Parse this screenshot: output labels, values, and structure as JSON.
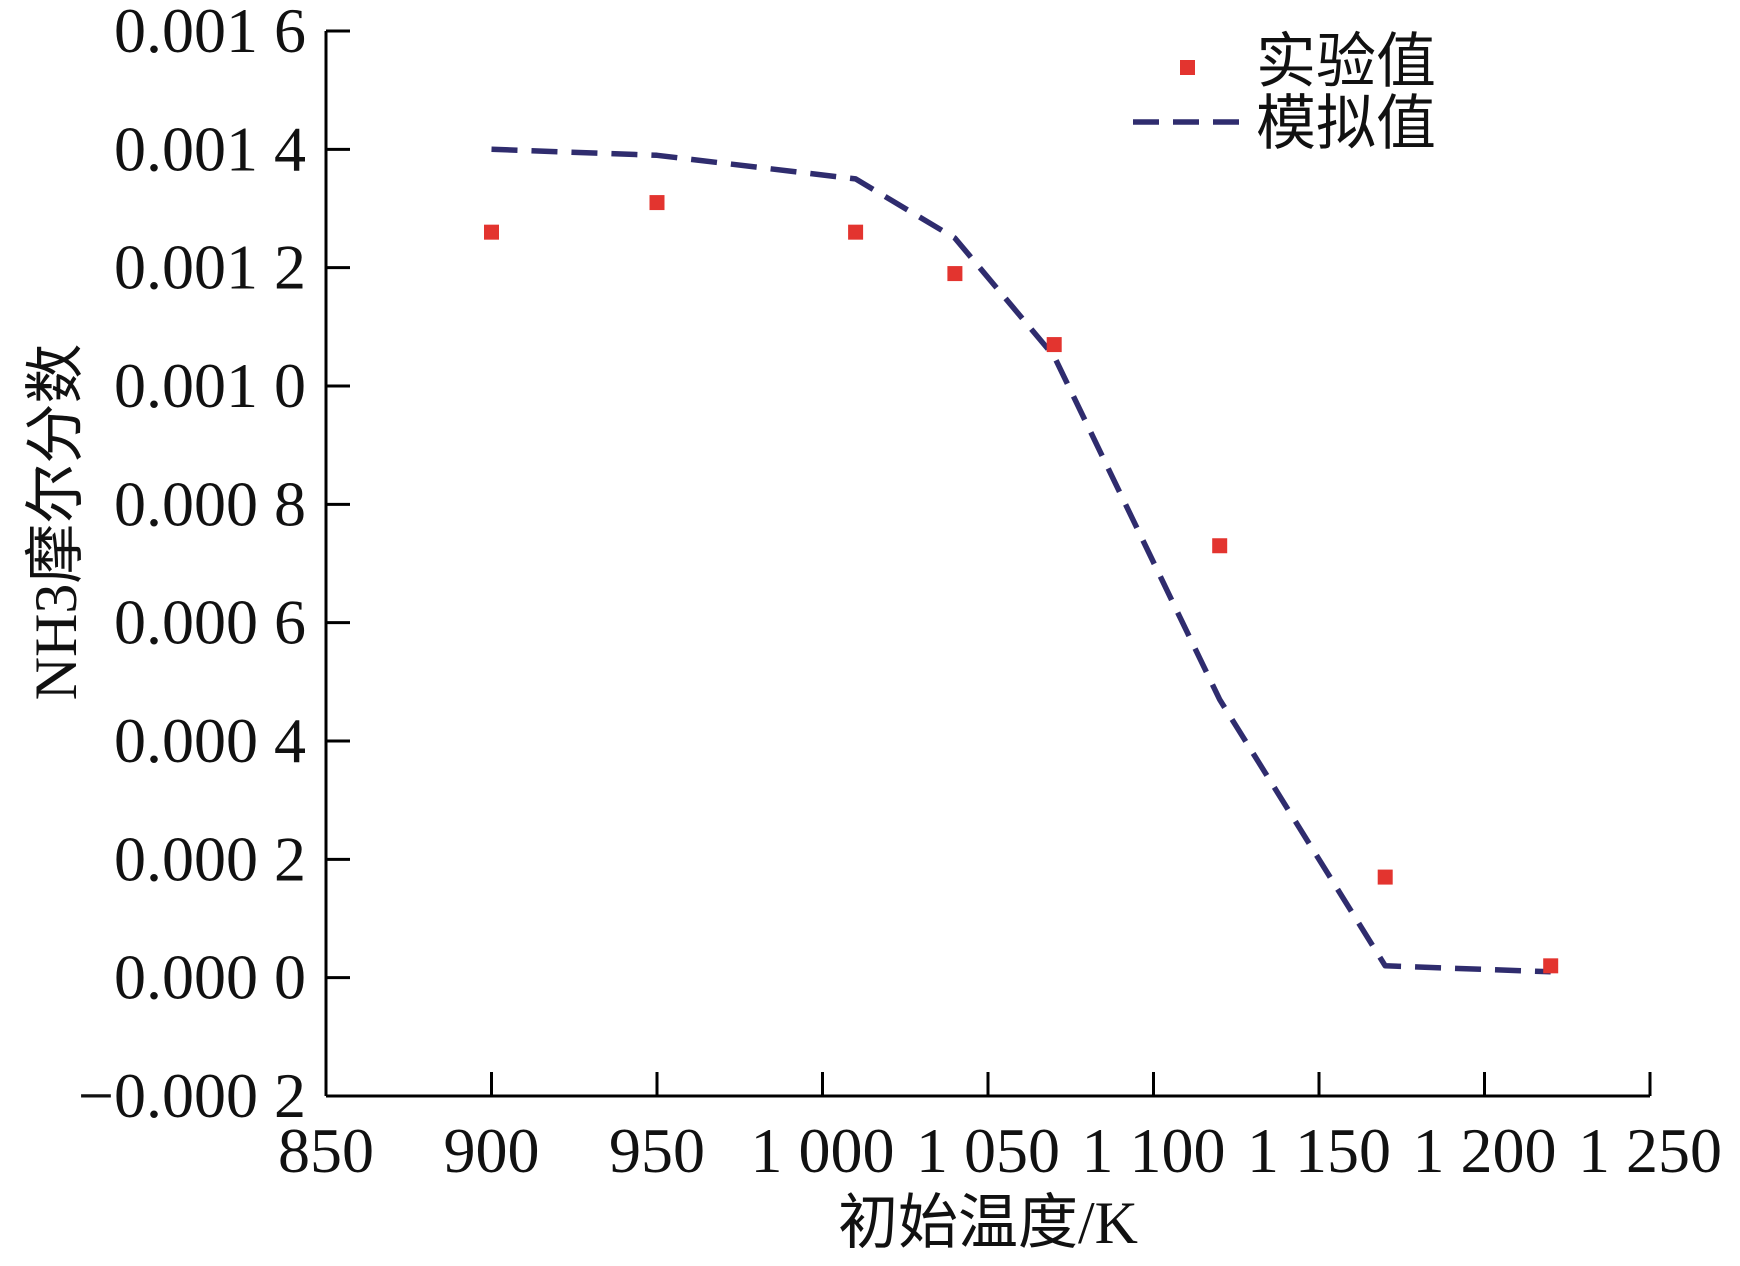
{
  "chart_data": {
    "type": "scatter",
    "xlabel": "初始温度/K",
    "ylabel": "NH3摩尔分数",
    "xlim": [
      850,
      1250
    ],
    "ylim": [
      -0.0002,
      0.0016
    ],
    "x_ticks": [
      850,
      900,
      950,
      1000,
      1050,
      1100,
      1150,
      1200,
      1250
    ],
    "x_tick_labels": [
      "850",
      "900",
      "950",
      "1 000",
      "1 050",
      "1 100",
      "1 150",
      "1 200",
      "1 250"
    ],
    "y_ticks": [
      -0.0002,
      0,
      0.0002,
      0.0004,
      0.0006,
      0.0008,
      0.001,
      0.0012,
      0.0014,
      0.0016
    ],
    "y_tick_labels": [
      "−0.000 2",
      "0.000 0",
      "0.000 2",
      "0.000 4",
      "0.000 6",
      "0.000 8",
      "0.001 0",
      "0.001 2",
      "0.001 4",
      "0.001 6"
    ],
    "grid": false,
    "legend_position": "top-right",
    "series": [
      {
        "name": "实验值",
        "type": "scatter",
        "marker": "square",
        "color": "#e3342f",
        "x": [
          900,
          950,
          1010,
          1040,
          1070,
          1120,
          1170,
          1220
        ],
        "y": [
          0.00126,
          0.00131,
          0.00126,
          0.00119,
          0.00107,
          0.00073,
          0.00017,
          2e-05
        ]
      },
      {
        "name": "模拟值",
        "type": "line",
        "style": "dashed",
        "color": "#2f2c6e",
        "x": [
          900,
          950,
          1010,
          1040,
          1070,
          1120,
          1170,
          1220
        ],
        "y": [
          0.0014,
          0.00139,
          0.00135,
          0.00125,
          0.00105,
          0.00047,
          2e-05,
          1e-05
        ]
      }
    ]
  }
}
